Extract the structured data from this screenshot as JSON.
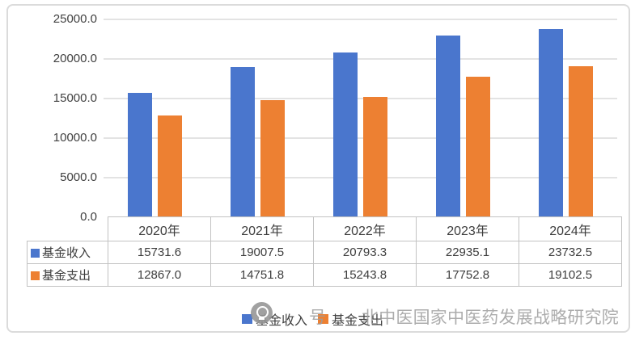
{
  "chart_data": {
    "type": "bar",
    "categories": [
      "2020年",
      "2021年",
      "2022年",
      "2023年",
      "2024年"
    ],
    "series": [
      {
        "name": "基金收入",
        "color": "#4A76CD",
        "values": [
          15731.6,
          19007.5,
          20793.3,
          22935.1,
          23732.5
        ]
      },
      {
        "name": "基金支出",
        "color": "#ED8032",
        "values": [
          12867.0,
          14751.8,
          15243.8,
          17752.8,
          19102.5
        ]
      }
    ],
    "title": "",
    "xlabel": "",
    "ylabel": "",
    "ylim": [
      0,
      25000
    ],
    "ytick_interval": 5000,
    "ytick_labels": [
      "25000.0",
      "20000.0",
      "15000.0",
      "10000.0",
      "5000.0",
      "0.0"
    ],
    "grid": true,
    "legend_position": "bottom",
    "data_table_shown": true
  },
  "table": {
    "column_headers": [
      "2020年",
      "2021年",
      "2022年",
      "2023年",
      "2024年"
    ],
    "rows": [
      {
        "label": "基金收入",
        "marker_color": "#4A76CD",
        "values": [
          "15731.6",
          "19007.5",
          "20793.3",
          "22935.1",
          "23732.5"
        ]
      },
      {
        "label": "基金支出",
        "marker_color": "#ED8032",
        "values": [
          "12867.0",
          "14751.8",
          "15243.8",
          "17752.8",
          "19102.5"
        ]
      }
    ]
  },
  "legend": {
    "items": [
      {
        "label": "基金收入",
        "color": "#4A76CD"
      },
      {
        "label": "基金支出",
        "color": "#ED8032"
      }
    ]
  },
  "watermark": {
    "icon": "wechat-logo-circle",
    "prefix": "号",
    "text": "北中医国家中医药发展战略研究院"
  },
  "colors": {
    "series_income": "#4A76CD",
    "series_expense": "#ED8032",
    "gridline": "#E3E3E3",
    "table_border": "#C2C2C2",
    "axis_text": "#404040",
    "frame_border": "#DBDBDB",
    "watermark": "#9E9E9E",
    "background": "#FFFFFF"
  }
}
